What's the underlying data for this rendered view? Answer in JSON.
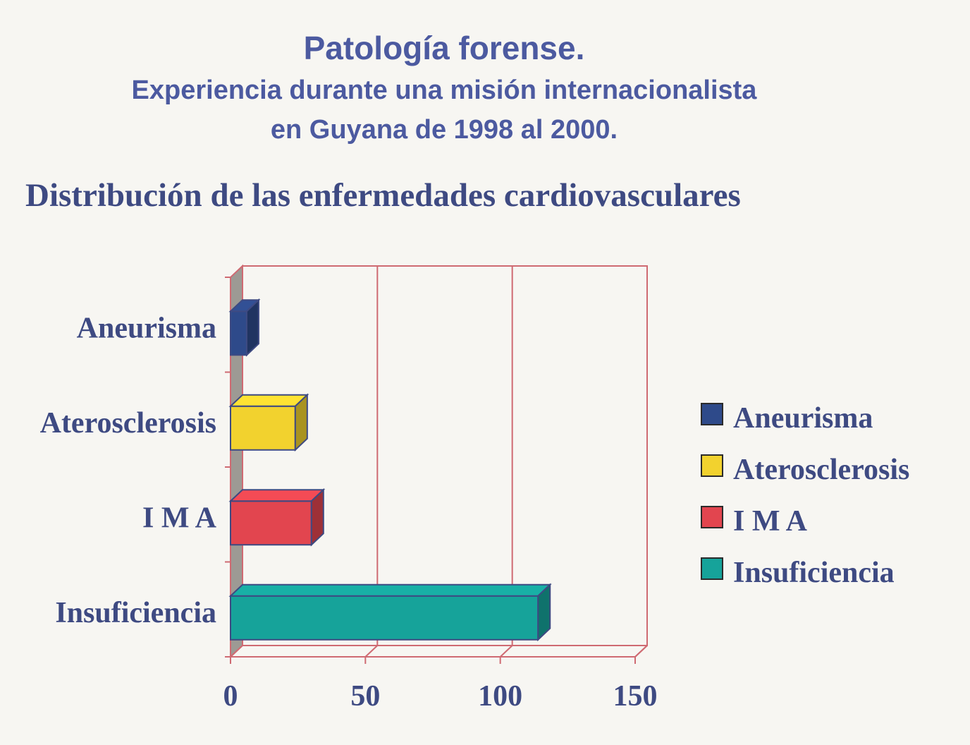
{
  "header": {
    "title": "Patología forense.",
    "subtitle_line1": "Experiencia durante una misión internacionalista",
    "subtitle_line2": "en Guyana de 1998 al  2000."
  },
  "chart_heading": "Distribución de las enfermedades cardiovasculares",
  "chart_data": {
    "type": "bar",
    "orientation": "horizontal",
    "style": "3d",
    "categories": [
      "Aneurisma",
      "Aterosclerosis",
      "I M A",
      "Insuficiencia"
    ],
    "values": [
      6,
      24,
      30,
      114
    ],
    "xlim": [
      0,
      150
    ],
    "xticks": [
      0,
      50,
      100,
      150
    ],
    "xtick_labels": [
      "0",
      "50",
      "100",
      "150"
    ],
    "grid": true,
    "legend_position": "right",
    "legend": [
      "Aneurisma",
      "Aterosclerosis",
      "I M A",
      "Insuficiencia"
    ],
    "colors": [
      "#2e4a8a",
      "#f2d22e",
      "#e2454f",
      "#16a39a"
    ]
  },
  "colors": {
    "title": "#4c5aa0",
    "text": "#3e4a82",
    "grid": "#cf6a72",
    "wall": "#9d9a94",
    "background": "#f7f6f2"
  }
}
